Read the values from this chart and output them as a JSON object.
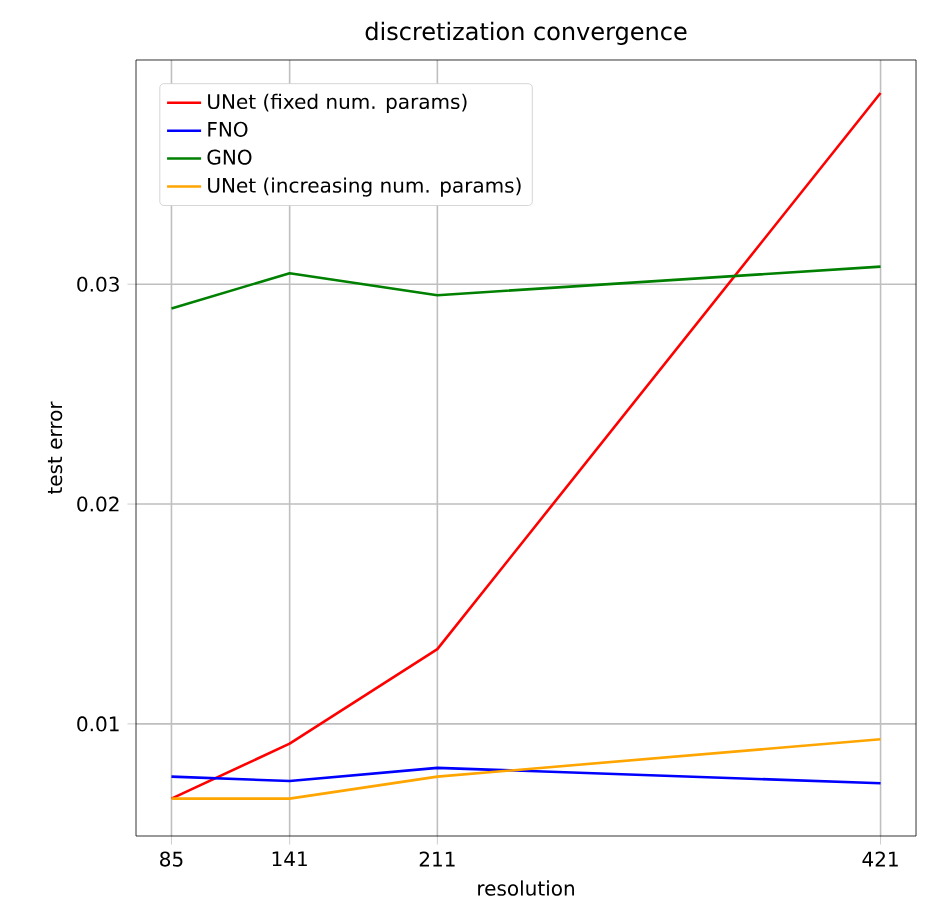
{
  "chart_data": {
    "type": "line",
    "title": "discretization convergence",
    "xlabel": "resolution",
    "ylabel": "test error",
    "x": [
      85,
      141,
      211,
      421
    ],
    "series": [
      {
        "name": "UNet (fixed num. params)",
        "color": "#ff0000",
        "values": [
          0.0066,
          0.0091,
          0.0134,
          0.0387
        ]
      },
      {
        "name": "FNO",
        "color": "#0000ff",
        "values": [
          0.0076,
          0.0074,
          0.008,
          0.0073
        ]
      },
      {
        "name": "GNO",
        "color": "#008000",
        "values": [
          0.0289,
          0.0305,
          0.0295,
          0.0308
        ]
      },
      {
        "name": "UNet (increasing num. params)",
        "color": "#ffa500",
        "values": [
          0.0066,
          0.0066,
          0.0076,
          0.0093
        ]
      }
    ],
    "xlim": [
      68.2,
      437.8
    ],
    "ylim": [
      0.0049,
      0.0402
    ],
    "xticks": [
      85,
      141,
      211,
      421
    ],
    "yticks": [
      0.01,
      0.02,
      0.03
    ],
    "grid": true,
    "legend": "top left",
    "line_style": "solid",
    "marker": "none"
  }
}
